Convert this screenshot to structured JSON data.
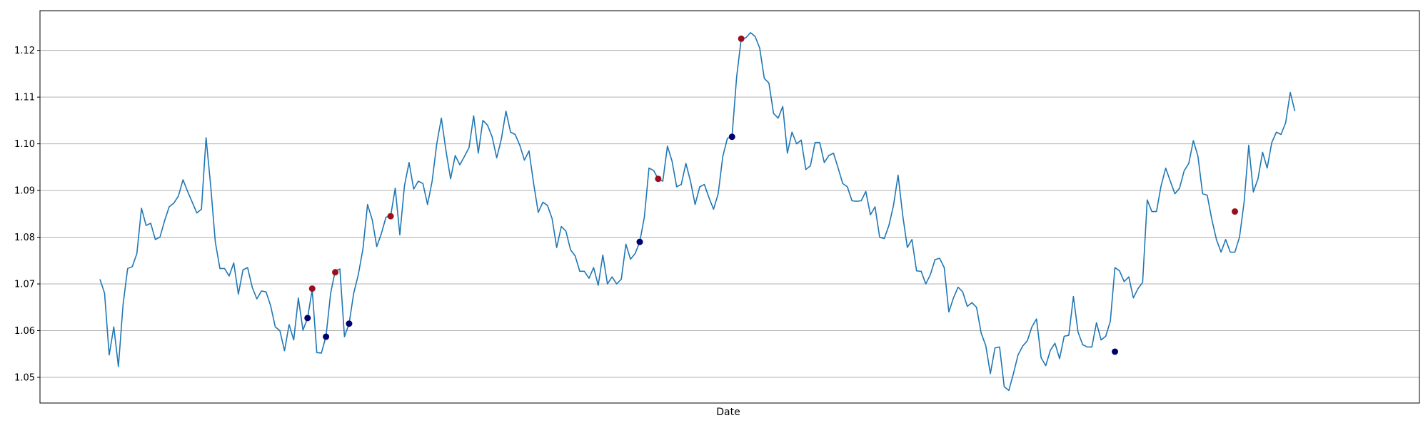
{
  "chart_data": {
    "type": "line",
    "title": "",
    "xlabel": "Date",
    "ylabel": "",
    "ylim": [
      1.0445,
      1.1285
    ],
    "yticks": [
      1.05,
      1.06,
      1.07,
      1.08,
      1.09,
      1.1,
      1.11,
      1.12
    ],
    "ytick_labels": [
      "1.05",
      "1.06",
      "1.07",
      "1.08",
      "1.09",
      "1.10",
      "1.11",
      "1.12"
    ],
    "xlim": [
      -13,
      286
    ],
    "grid": "horizontal",
    "legend": "none",
    "colors": {
      "line": "#1f77b4",
      "buy_marker": "#00006e",
      "sell_marker": "#9b0f1c",
      "grid": "#b0b0b0"
    },
    "series": [
      {
        "values": [
          1.071,
          1.068,
          1.0548,
          1.0608,
          1.0523,
          1.0655,
          1.0733,
          1.0737,
          1.0765,
          1.0862,
          1.0825,
          1.083,
          1.0795,
          1.08,
          1.0835,
          1.0865,
          1.0873,
          1.0888,
          1.0923,
          1.0898,
          1.0875,
          1.0852,
          1.086,
          1.1013,
          1.091,
          1.079,
          1.0733,
          1.0733,
          1.0717,
          1.0745,
          1.0678,
          1.073,
          1.0735,
          1.0693,
          1.0668,
          1.0685,
          1.0683,
          1.0653,
          1.0608,
          1.06,
          1.0557,
          1.0613,
          1.058,
          1.067,
          1.0601,
          1.0627,
          1.0688,
          1.0553,
          1.0552,
          1.0588,
          1.068,
          1.0728,
          1.0732,
          1.0587,
          1.0615,
          1.068,
          1.072,
          1.0775,
          1.087,
          1.0838,
          1.078,
          1.0808,
          1.0843,
          1.0845,
          1.0905,
          1.0805,
          1.091,
          1.096,
          1.0903,
          1.092,
          1.0915,
          1.087,
          1.092,
          1.1,
          1.1055,
          1.0985,
          1.0925,
          1.0975,
          1.0955,
          1.0973,
          1.0992,
          1.106,
          1.098,
          1.105,
          1.104,
          1.1015,
          1.097,
          1.101,
          1.107,
          1.1025,
          1.102,
          1.0997,
          1.0965,
          1.0985,
          1.0915,
          1.0853,
          1.0875,
          1.0868,
          1.084,
          1.0778,
          1.0823,
          1.0813,
          1.0773,
          1.076,
          1.0727,
          1.0727,
          1.0712,
          1.0735,
          1.0697,
          1.0762,
          1.07,
          1.0715,
          1.07,
          1.071,
          1.0785,
          1.0753,
          1.0765,
          1.079,
          1.0843,
          1.0948,
          1.0943,
          1.0925,
          1.092,
          1.0995,
          1.0963,
          1.0908,
          1.0913,
          1.0958,
          1.092,
          1.087,
          1.0908,
          1.0913,
          1.0885,
          1.086,
          1.0893,
          1.0973,
          1.1012,
          1.1015,
          1.1143,
          1.1225,
          1.1227,
          1.1238,
          1.123,
          1.1205,
          1.114,
          1.113,
          1.1065,
          1.1055,
          1.108,
          1.098,
          1.1025,
          1.1,
          1.1008,
          1.0945,
          1.0953,
          1.1003,
          1.1003,
          1.096,
          1.0975,
          1.098,
          1.0948,
          1.0915,
          1.0908,
          1.0878,
          1.0877,
          1.0878,
          1.0898,
          1.0848,
          1.0865,
          1.08,
          1.0797,
          1.0825,
          1.0868,
          1.0933,
          1.0847,
          1.0778,
          1.0795,
          1.0728,
          1.0727,
          1.07,
          1.072,
          1.0752,
          1.0755,
          1.0735,
          1.064,
          1.067,
          1.0693,
          1.0683,
          1.0652,
          1.066,
          1.065,
          1.0595,
          1.0568,
          1.0508,
          1.0563,
          1.0565,
          1.048,
          1.0472,
          1.0508,
          1.0548,
          1.0567,
          1.0578,
          1.0608,
          1.0625,
          1.0542,
          1.0525,
          1.0558,
          1.0573,
          1.054,
          1.0588,
          1.059,
          1.0673,
          1.0597,
          1.057,
          1.0565,
          1.0565,
          1.0617,
          1.058,
          1.0588,
          1.062,
          1.0735,
          1.0728,
          1.0705,
          1.0715,
          1.067,
          1.069,
          1.0703,
          1.088,
          1.0855,
          1.0855,
          1.091,
          1.0948,
          1.092,
          1.0893,
          1.0905,
          1.0942,
          1.0958,
          1.1007,
          1.0973,
          1.0893,
          1.089,
          1.0838,
          1.0795,
          1.0768,
          1.0795,
          1.0768,
          1.0768,
          1.08,
          1.0875,
          1.0997,
          1.0897,
          1.0925,
          1.0982,
          1.0948,
          1.1003,
          1.1025,
          1.102,
          1.1045,
          1.111,
          1.107
        ]
      }
    ],
    "buy_points": [
      {
        "x": 45,
        "y": 1.0627
      },
      {
        "x": 49,
        "y": 1.0587
      },
      {
        "x": 54,
        "y": 1.0615
      },
      {
        "x": 117,
        "y": 1.079
      },
      {
        "x": 137,
        "y": 1.1015
      },
      {
        "x": 220,
        "y": 1.0555
      }
    ],
    "sell_points": [
      {
        "x": 46,
        "y": 1.069
      },
      {
        "x": 51,
        "y": 1.0725
      },
      {
        "x": 63,
        "y": 1.0845
      },
      {
        "x": 121,
        "y": 1.0925
      },
      {
        "x": 139,
        "y": 1.1225
      },
      {
        "x": 246,
        "y": 1.0855
      }
    ]
  }
}
